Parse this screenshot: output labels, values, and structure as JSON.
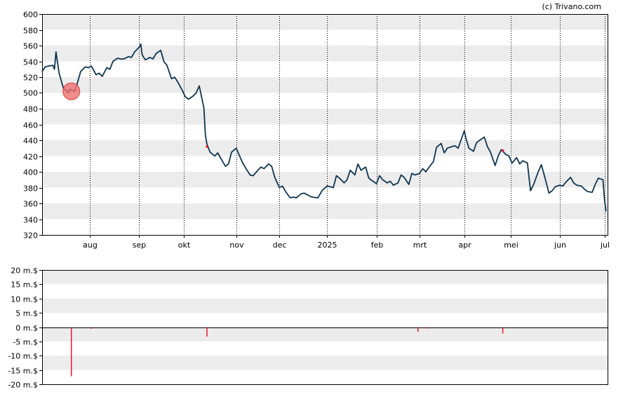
{
  "copyright": "(c) Trivano.com",
  "colors": {
    "price_line": "#0f3550",
    "band": "#ececec",
    "volume_bar": "#e41b2b",
    "marker_fill": "#f07070",
    "marker_stroke": "#d43c3c",
    "grid": "#000000"
  },
  "chart_data": [
    {
      "type": "line",
      "name": "price-chart",
      "ylim": [
        320,
        600
      ],
      "yticks": [
        320,
        340,
        360,
        380,
        400,
        420,
        440,
        460,
        480,
        500,
        520,
        540,
        560,
        580,
        600
      ],
      "x_range": [
        "2024-07-01",
        "2025-07-03"
      ],
      "month_ticks": [
        {
          "label": "aug",
          "date": "2024-08-01"
        },
        {
          "label": "sep",
          "date": "2024-09-02"
        },
        {
          "label": "okt",
          "date": "2024-10-01"
        },
        {
          "label": "nov",
          "date": "2024-11-04"
        },
        {
          "label": "dec",
          "date": "2024-12-02"
        },
        {
          "label": "2025",
          "date": "2025-01-02"
        },
        {
          "label": "feb",
          "date": "2025-02-03"
        },
        {
          "label": "mrt",
          "date": "2025-03-03"
        },
        {
          "label": "apr",
          "date": "2025-04-01"
        },
        {
          "label": "mei",
          "date": "2025-05-01"
        },
        {
          "label": "jun",
          "date": "2025-06-02"
        },
        {
          "label": "jul",
          "date": "2025-07-01"
        }
      ],
      "series": [
        {
          "points": [
            [
              "2024-07-01",
              527
            ],
            [
              "2024-07-03",
              533
            ],
            [
              "2024-07-05",
              534
            ],
            [
              "2024-07-08",
              535
            ],
            [
              "2024-07-09",
              530
            ],
            [
              "2024-07-10",
              552
            ],
            [
              "2024-07-12",
              525
            ],
            [
              "2024-07-15",
              505
            ],
            [
              "2024-07-17",
              503
            ],
            [
              "2024-07-18",
              500
            ],
            [
              "2024-07-19",
              505
            ],
            [
              "2024-07-22",
              502
            ],
            [
              "2024-07-24",
              513
            ],
            [
              "2024-07-26",
              527
            ],
            [
              "2024-07-29",
              533
            ],
            [
              "2024-07-31",
              532
            ],
            [
              "2024-08-02",
              534
            ],
            [
              "2024-08-05",
              523
            ],
            [
              "2024-08-07",
              525
            ],
            [
              "2024-08-09",
              521
            ],
            [
              "2024-08-12",
              532
            ],
            [
              "2024-08-14",
              530
            ],
            [
              "2024-08-16",
              540
            ],
            [
              "2024-08-19",
              544
            ],
            [
              "2024-08-21",
              543
            ],
            [
              "2024-08-23",
              543
            ],
            [
              "2024-08-26",
              546
            ],
            [
              "2024-08-28",
              545
            ],
            [
              "2024-08-30",
              552
            ],
            [
              "2024-09-02",
              558
            ],
            [
              "2024-09-03",
              562
            ],
            [
              "2024-09-04",
              548
            ],
            [
              "2024-09-06",
              542
            ],
            [
              "2024-09-09",
              545
            ],
            [
              "2024-09-11",
              543
            ],
            [
              "2024-09-13",
              550
            ],
            [
              "2024-09-16",
              554
            ],
            [
              "2024-09-18",
              540
            ],
            [
              "2024-09-20",
              535
            ],
            [
              "2024-09-23",
              518
            ],
            [
              "2024-09-25",
              520
            ],
            [
              "2024-09-27",
              514
            ],
            [
              "2024-09-30",
              503
            ],
            [
              "2024-10-02",
              495
            ],
            [
              "2024-10-04",
              492
            ],
            [
              "2024-10-07",
              496
            ],
            [
              "2024-10-09",
              500
            ],
            [
              "2024-10-11",
              509
            ],
            [
              "2024-10-14",
              481
            ],
            [
              "2024-10-15",
              446
            ],
            [
              "2024-10-16",
              435
            ],
            [
              "2024-10-17",
              430
            ],
            [
              "2024-10-18",
              425
            ],
            [
              "2024-10-21",
              420
            ],
            [
              "2024-10-23",
              424
            ],
            [
              "2024-10-25",
              417
            ],
            [
              "2024-10-28",
              407
            ],
            [
              "2024-10-30",
              410
            ],
            [
              "2024-11-01",
              425
            ],
            [
              "2024-11-04",
              430
            ],
            [
              "2024-11-06",
              421
            ],
            [
              "2024-11-08",
              412
            ],
            [
              "2024-11-11",
              402
            ],
            [
              "2024-11-13",
              396
            ],
            [
              "2024-11-15",
              395
            ],
            [
              "2024-11-18",
              402
            ],
            [
              "2024-11-20",
              406
            ],
            [
              "2024-11-22",
              404
            ],
            [
              "2024-11-25",
              410
            ],
            [
              "2024-11-27",
              407
            ],
            [
              "2024-11-29",
              393
            ],
            [
              "2024-12-02",
              380
            ],
            [
              "2024-12-04",
              382
            ],
            [
              "2024-12-06",
              375
            ],
            [
              "2024-12-09",
              367
            ],
            [
              "2024-12-11",
              368
            ],
            [
              "2024-12-13",
              367
            ],
            [
              "2024-12-16",
              372
            ],
            [
              "2024-12-18",
              373
            ],
            [
              "2024-12-20",
              371
            ],
            [
              "2024-12-23",
              368
            ],
            [
              "2024-12-27",
              367
            ],
            [
              "2024-12-30",
              377
            ],
            [
              "2025-01-02",
              382
            ],
            [
              "2025-01-06",
              380
            ],
            [
              "2025-01-08",
              395
            ],
            [
              "2025-01-10",
              392
            ],
            [
              "2025-01-13",
              386
            ],
            [
              "2025-01-15",
              390
            ],
            [
              "2025-01-17",
              402
            ],
            [
              "2025-01-20",
              396
            ],
            [
              "2025-01-22",
              410
            ],
            [
              "2025-01-24",
              402
            ],
            [
              "2025-01-27",
              406
            ],
            [
              "2025-01-29",
              392
            ],
            [
              "2025-01-31",
              389
            ],
            [
              "2025-02-03",
              385
            ],
            [
              "2025-02-05",
              395
            ],
            [
              "2025-02-07",
              390
            ],
            [
              "2025-02-10",
              386
            ],
            [
              "2025-02-12",
              388
            ],
            [
              "2025-02-14",
              383
            ],
            [
              "2025-02-17",
              386
            ],
            [
              "2025-02-19",
              396
            ],
            [
              "2025-02-21",
              393
            ],
            [
              "2025-02-24",
              384
            ],
            [
              "2025-02-26",
              398
            ],
            [
              "2025-02-28",
              396
            ],
            [
              "2025-03-03",
              398
            ],
            [
              "2025-03-05",
              404
            ],
            [
              "2025-03-07",
              400
            ],
            [
              "2025-03-10",
              408
            ],
            [
              "2025-03-12",
              413
            ],
            [
              "2025-03-14",
              431
            ],
            [
              "2025-03-17",
              436
            ],
            [
              "2025-03-19",
              424
            ],
            [
              "2025-03-21",
              430
            ],
            [
              "2025-03-24",
              432
            ],
            [
              "2025-03-26",
              433
            ],
            [
              "2025-03-28",
              430
            ],
            [
              "2025-04-01",
              452
            ],
            [
              "2025-04-02",
              443
            ],
            [
              "2025-04-04",
              430
            ],
            [
              "2025-04-07",
              426
            ],
            [
              "2025-04-09",
              437
            ],
            [
              "2025-04-11",
              440
            ],
            [
              "2025-04-14",
              444
            ],
            [
              "2025-04-16",
              432
            ],
            [
              "2025-04-18",
              425
            ],
            [
              "2025-04-21",
              408
            ],
            [
              "2025-04-23",
              420
            ],
            [
              "2025-04-25",
              428
            ],
            [
              "2025-04-28",
              422
            ],
            [
              "2025-04-30",
              420
            ],
            [
              "2025-05-02",
              411
            ],
            [
              "2025-05-05",
              418
            ],
            [
              "2025-05-07",
              410
            ],
            [
              "2025-05-09",
              414
            ],
            [
              "2025-05-12",
              411
            ],
            [
              "2025-05-14",
              376
            ],
            [
              "2025-05-16",
              384
            ],
            [
              "2025-05-19",
              400
            ],
            [
              "2025-05-21",
              409
            ],
            [
              "2025-05-23",
              395
            ],
            [
              "2025-05-26",
              373
            ],
            [
              "2025-05-28",
              376
            ],
            [
              "2025-05-30",
              381
            ],
            [
              "2025-06-02",
              383
            ],
            [
              "2025-06-04",
              382
            ],
            [
              "2025-06-06",
              387
            ],
            [
              "2025-06-09",
              393
            ],
            [
              "2025-06-11",
              386
            ],
            [
              "2025-06-13",
              383
            ],
            [
              "2025-06-16",
              382
            ],
            [
              "2025-06-18",
              378
            ],
            [
              "2025-06-20",
              375
            ],
            [
              "2025-06-23",
              374
            ],
            [
              "2025-06-25",
              384
            ],
            [
              "2025-06-27",
              392
            ],
            [
              "2025-06-30",
              390
            ],
            [
              "2025-07-01",
              365
            ],
            [
              "2025-07-02",
              350
            ]
          ]
        }
      ],
      "markers": [
        {
          "date": "2024-07-20",
          "value": 502,
          "kind": "circle"
        },
        {
          "date": "2024-10-16",
          "value": 432,
          "kind": "dot"
        },
        {
          "date": "2025-04-26",
          "value": 427,
          "kind": "dot"
        }
      ]
    },
    {
      "type": "bar",
      "name": "volume-chart",
      "ylim": [
        -20,
        20
      ],
      "yticks": [
        {
          "value": 20,
          "label": "20 m.$"
        },
        {
          "value": 15,
          "label": "15 m.$"
        },
        {
          "value": 10,
          "label": "10 m.$"
        },
        {
          "value": 5,
          "label": "5 m.$"
        },
        {
          "value": 0,
          "label": "0 m.$"
        },
        {
          "value": -5,
          "label": "-5 m.$"
        },
        {
          "value": -10,
          "label": "-10 m.$"
        },
        {
          "value": -15,
          "label": "-15 m.$"
        },
        {
          "value": -20,
          "label": "-20 m.$"
        }
      ],
      "bars": [
        {
          "date": "2024-07-20",
          "value": -17.2
        },
        {
          "date": "2024-08-02",
          "value": -0.6
        },
        {
          "date": "2024-10-16",
          "value": -3.3
        },
        {
          "date": "2025-03-02",
          "value": -1.6
        },
        {
          "date": "2025-03-08",
          "value": -0.5
        },
        {
          "date": "2025-04-26",
          "value": -2.2
        }
      ]
    }
  ]
}
